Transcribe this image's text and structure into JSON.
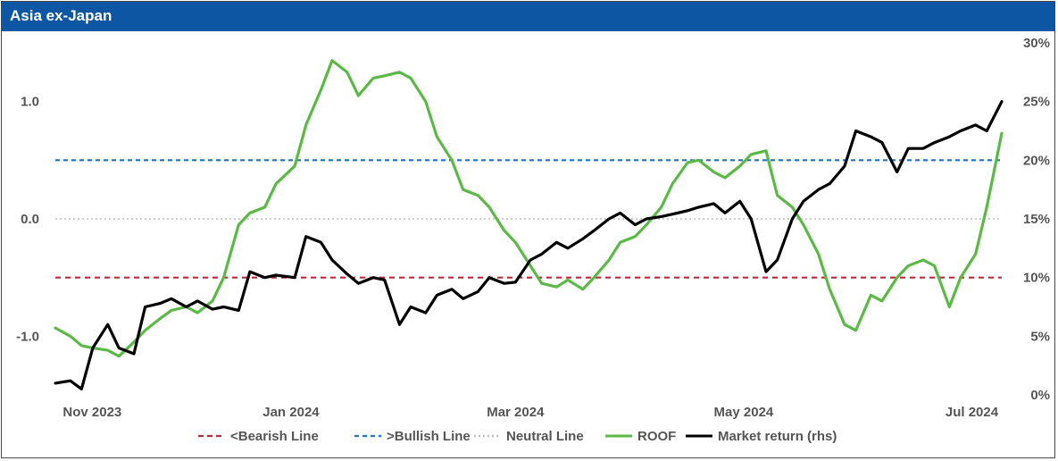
{
  "header": {
    "title": "Asia ex-Japan"
  },
  "colors": {
    "title_bar": "#0d56a4",
    "bearish": "#c0283a",
    "bullish": "#1f73c9",
    "neutral": "#bdbdbd",
    "roof": "#5bb946",
    "market": "#000000",
    "tick_text": "#555555"
  },
  "chart_data": {
    "type": "line",
    "title": "Asia ex-Japan",
    "x_ticks": [
      "Nov 2023",
      "Jan 2024",
      "Mar 2024",
      "May 2024",
      "Jul 2024"
    ],
    "x_range": [
      "2023-10-30",
      "2024-07-09"
    ],
    "y_left": {
      "ticks": [
        "1.0",
        "0.0",
        "-1.0"
      ],
      "range": [
        -1.5,
        1.5
      ]
    },
    "y_right": {
      "ticks": [
        "30%",
        "25%",
        "20%",
        "15%",
        "10%",
        "5%",
        "0%"
      ],
      "range": [
        0,
        30
      ]
    },
    "reference_lines": [
      {
        "name": "<Bearish Line",
        "value": -0.5,
        "style": "dashed"
      },
      {
        "name": ">Bullish Line",
        "value": 0.5,
        "style": "dashed"
      },
      {
        "name": "Neutral Line",
        "value": 0.0,
        "style": "dotted"
      }
    ],
    "series": [
      {
        "name": "ROOF",
        "axis": "left",
        "points": [
          [
            "2023-10-30",
            -0.93
          ],
          [
            "2023-11-03",
            -1.0
          ],
          [
            "2023-11-06",
            -1.08
          ],
          [
            "2023-11-09",
            -1.1
          ],
          [
            "2023-11-13",
            -1.12
          ],
          [
            "2023-11-16",
            -1.17
          ],
          [
            "2023-11-20",
            -1.05
          ],
          [
            "2023-11-23",
            -0.95
          ],
          [
            "2023-11-27",
            -0.85
          ],
          [
            "2023-11-30",
            -0.78
          ],
          [
            "2023-12-04",
            -0.75
          ],
          [
            "2023-12-07",
            -0.8
          ],
          [
            "2023-12-11",
            -0.7
          ],
          [
            "2023-12-14",
            -0.5
          ],
          [
            "2023-12-18",
            -0.05
          ],
          [
            "2023-12-21",
            0.05
          ],
          [
            "2023-12-25",
            0.1
          ],
          [
            "2023-12-28",
            0.3
          ],
          [
            "2024-01-02",
            0.45
          ],
          [
            "2024-01-05",
            0.8
          ],
          [
            "2024-01-09",
            1.1
          ],
          [
            "2024-01-12",
            1.35
          ],
          [
            "2024-01-16",
            1.25
          ],
          [
            "2024-01-19",
            1.05
          ],
          [
            "2024-01-23",
            1.2
          ],
          [
            "2024-01-26",
            1.22
          ],
          [
            "2024-01-30",
            1.25
          ],
          [
            "2024-02-02",
            1.2
          ],
          [
            "2024-02-06",
            1.0
          ],
          [
            "2024-02-09",
            0.7
          ],
          [
            "2024-02-13",
            0.5
          ],
          [
            "2024-02-16",
            0.25
          ],
          [
            "2024-02-20",
            0.2
          ],
          [
            "2024-02-23",
            0.1
          ],
          [
            "2024-02-27",
            -0.1
          ],
          [
            "2024-03-01",
            -0.2
          ],
          [
            "2024-03-05",
            -0.4
          ],
          [
            "2024-03-08",
            -0.55
          ],
          [
            "2024-03-12",
            -0.58
          ],
          [
            "2024-03-15",
            -0.52
          ],
          [
            "2024-03-19",
            -0.6
          ],
          [
            "2024-03-22",
            -0.5
          ],
          [
            "2024-03-26",
            -0.35
          ],
          [
            "2024-03-29",
            -0.2
          ],
          [
            "2024-04-02",
            -0.15
          ],
          [
            "2024-04-05",
            -0.05
          ],
          [
            "2024-04-09",
            0.1
          ],
          [
            "2024-04-12",
            0.3
          ],
          [
            "2024-04-16",
            0.48
          ],
          [
            "2024-04-19",
            0.5
          ],
          [
            "2024-04-23",
            0.4
          ],
          [
            "2024-04-26",
            0.35
          ],
          [
            "2024-04-30",
            0.45
          ],
          [
            "2024-05-03",
            0.55
          ],
          [
            "2024-05-07",
            0.58
          ],
          [
            "2024-05-10",
            0.2
          ],
          [
            "2024-05-14",
            0.1
          ],
          [
            "2024-05-17",
            -0.05
          ],
          [
            "2024-05-21",
            -0.3
          ],
          [
            "2024-05-24",
            -0.6
          ],
          [
            "2024-05-28",
            -0.9
          ],
          [
            "2024-05-31",
            -0.95
          ],
          [
            "2024-06-04",
            -0.65
          ],
          [
            "2024-06-07",
            -0.7
          ],
          [
            "2024-06-11",
            -0.5
          ],
          [
            "2024-06-14",
            -0.4
          ],
          [
            "2024-06-18",
            -0.35
          ],
          [
            "2024-06-21",
            -0.4
          ],
          [
            "2024-06-25",
            -0.75
          ],
          [
            "2024-06-28",
            -0.5
          ],
          [
            "2024-07-02",
            -0.3
          ],
          [
            "2024-07-05",
            0.1
          ],
          [
            "2024-07-09",
            0.73
          ]
        ]
      },
      {
        "name": "Market return (rhs)",
        "axis": "right",
        "points": [
          [
            "2023-10-30",
            1.0
          ],
          [
            "2023-11-03",
            1.2
          ],
          [
            "2023-11-06",
            0.5
          ],
          [
            "2023-11-09",
            4.0
          ],
          [
            "2023-11-13",
            6.0
          ],
          [
            "2023-11-16",
            4.0
          ],
          [
            "2023-11-20",
            3.5
          ],
          [
            "2023-11-23",
            7.5
          ],
          [
            "2023-11-27",
            7.8
          ],
          [
            "2023-11-30",
            8.2
          ],
          [
            "2023-12-04",
            7.5
          ],
          [
            "2023-12-07",
            8.0
          ],
          [
            "2023-12-11",
            7.3
          ],
          [
            "2023-12-14",
            7.5
          ],
          [
            "2023-12-18",
            7.2
          ],
          [
            "2023-12-21",
            10.5
          ],
          [
            "2023-12-25",
            10.0
          ],
          [
            "2023-12-28",
            10.2
          ],
          [
            "2024-01-02",
            10.0
          ],
          [
            "2024-01-05",
            13.5
          ],
          [
            "2024-01-09",
            13.0
          ],
          [
            "2024-01-12",
            11.5
          ],
          [
            "2024-01-16",
            10.3
          ],
          [
            "2024-01-19",
            9.5
          ],
          [
            "2024-01-23",
            10.0
          ],
          [
            "2024-01-26",
            9.8
          ],
          [
            "2024-01-30",
            6.0
          ],
          [
            "2024-02-02",
            7.5
          ],
          [
            "2024-02-06",
            7.0
          ],
          [
            "2024-02-09",
            8.5
          ],
          [
            "2024-02-13",
            9.0
          ],
          [
            "2024-02-16",
            8.2
          ],
          [
            "2024-02-20",
            8.8
          ],
          [
            "2024-02-23",
            10.0
          ],
          [
            "2024-02-27",
            9.5
          ],
          [
            "2024-03-01",
            9.6
          ],
          [
            "2024-03-05",
            11.5
          ],
          [
            "2024-03-08",
            12.0
          ],
          [
            "2024-03-12",
            13.0
          ],
          [
            "2024-03-15",
            12.5
          ],
          [
            "2024-03-19",
            13.3
          ],
          [
            "2024-03-22",
            14.0
          ],
          [
            "2024-03-26",
            15.0
          ],
          [
            "2024-03-29",
            15.5
          ],
          [
            "2024-04-02",
            14.5
          ],
          [
            "2024-04-05",
            15.0
          ],
          [
            "2024-04-09",
            15.2
          ],
          [
            "2024-04-12",
            15.4
          ],
          [
            "2024-04-16",
            15.7
          ],
          [
            "2024-04-19",
            16.0
          ],
          [
            "2024-04-23",
            16.3
          ],
          [
            "2024-04-26",
            15.5
          ],
          [
            "2024-04-30",
            16.5
          ],
          [
            "2024-05-03",
            15.0
          ],
          [
            "2024-05-07",
            10.5
          ],
          [
            "2024-05-10",
            11.5
          ],
          [
            "2024-05-14",
            15.0
          ],
          [
            "2024-05-17",
            16.5
          ],
          [
            "2024-05-21",
            17.5
          ],
          [
            "2024-05-24",
            18.0
          ],
          [
            "2024-05-28",
            19.5
          ],
          [
            "2024-05-31",
            22.5
          ],
          [
            "2024-06-04",
            22.0
          ],
          [
            "2024-06-07",
            21.5
          ],
          [
            "2024-06-11",
            19.0
          ],
          [
            "2024-06-14",
            21.0
          ],
          [
            "2024-06-18",
            21.0
          ],
          [
            "2024-06-21",
            21.5
          ],
          [
            "2024-06-25",
            22.0
          ],
          [
            "2024-06-28",
            22.5
          ],
          [
            "2024-07-02",
            23.0
          ],
          [
            "2024-07-05",
            22.5
          ],
          [
            "2024-07-09",
            25.0
          ]
        ]
      }
    ],
    "legend": {
      "position": "bottom",
      "entries": [
        "<Bearish Line",
        ">Bullish Line",
        "Neutral Line",
        "ROOF",
        "Market return (rhs)"
      ]
    }
  }
}
